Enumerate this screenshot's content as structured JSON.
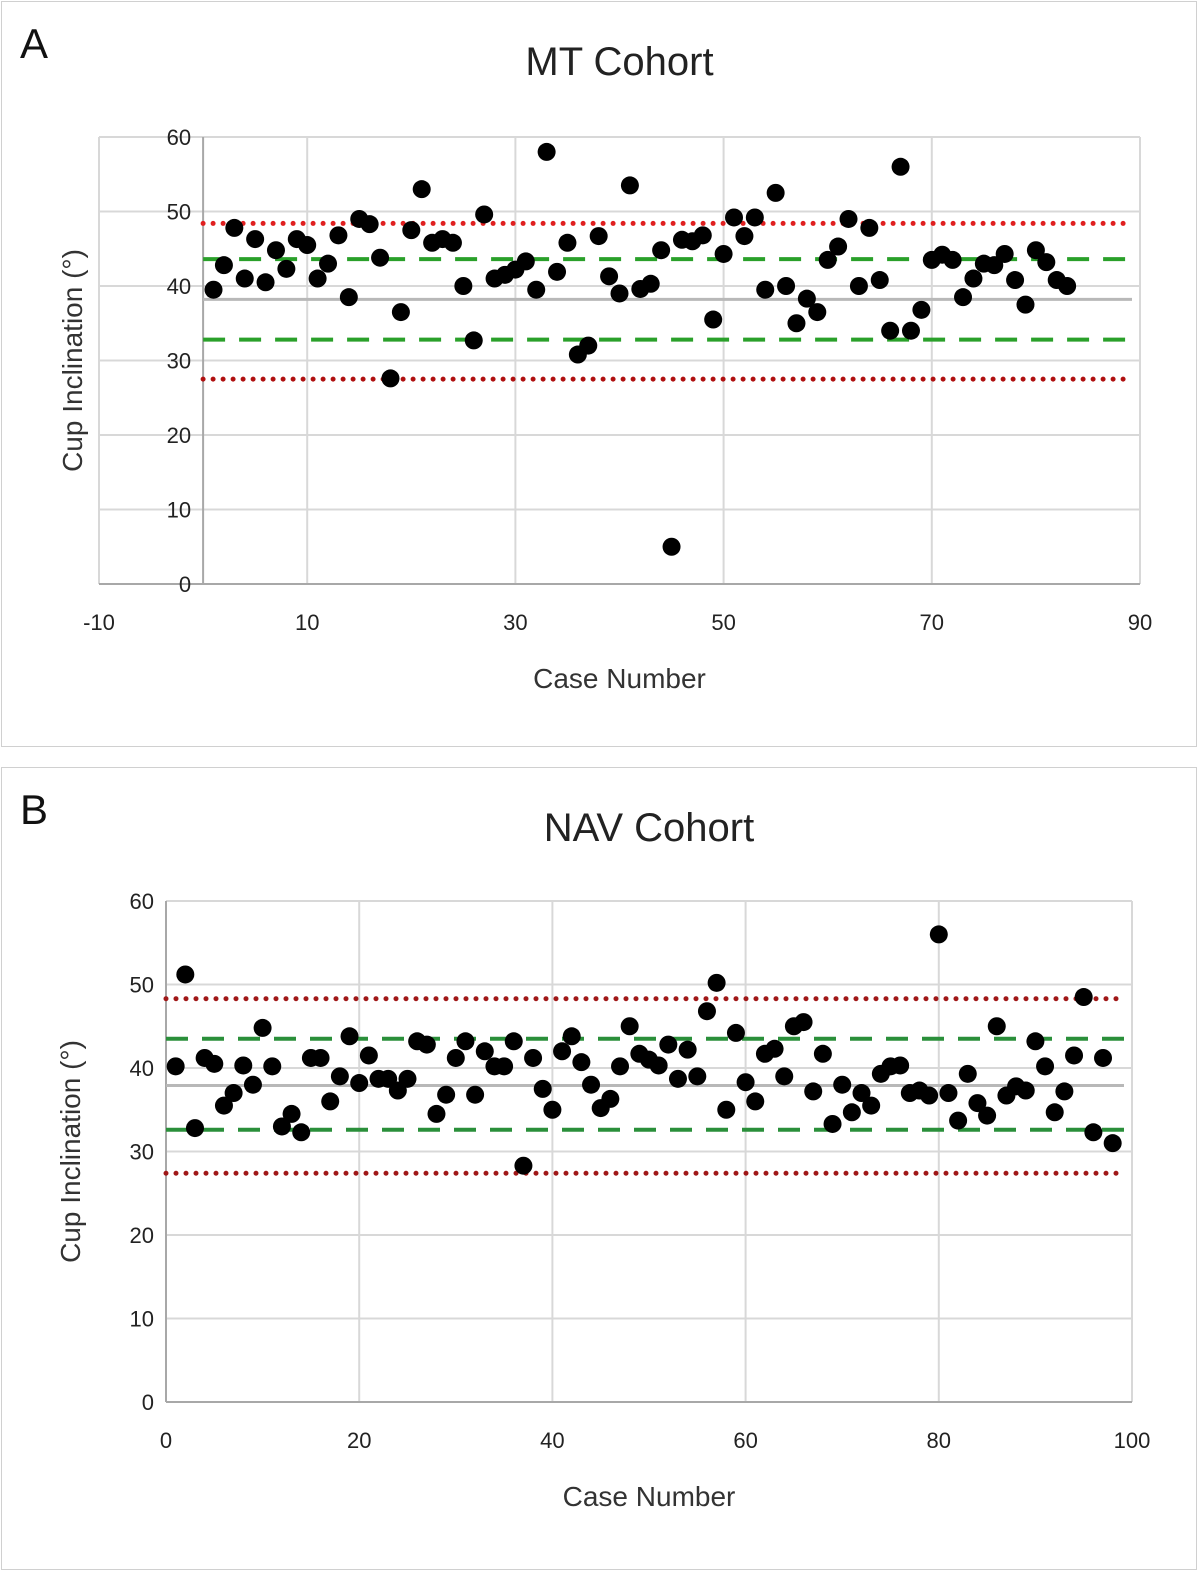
{
  "chart_data": [
    {
      "panel_label": "A",
      "type": "scatter",
      "title": "MT Cohort",
      "xlabel": "Case Number",
      "ylabel": "Cup Inclination  (°)",
      "xlim": [
        -10,
        90
      ],
      "ylim": [
        0,
        60
      ],
      "xticks": [
        -10,
        10,
        30,
        50,
        70,
        90
      ],
      "yticks": [
        0,
        10,
        20,
        30,
        40,
        50,
        60
      ],
      "grid": true,
      "colors": {
        "points": "#000000",
        "outer_limits": "#e02020",
        "inner_limits": "#2aa02a",
        "mean": "#b8b8b8",
        "grid": "#d8d8d8"
      },
      "reference_lines": [
        {
          "kind": "outer-upper",
          "y": 48.4,
          "style": "dotted",
          "color": "#e02020"
        },
        {
          "kind": "inner-upper",
          "y": 43.6,
          "style": "dashed",
          "color": "#2aa02a"
        },
        {
          "kind": "mean",
          "y": 38.2,
          "style": "solid",
          "color": "#b8b8b8"
        },
        {
          "kind": "inner-lower",
          "y": 32.8,
          "style": "dashed",
          "color": "#2aa02a"
        },
        {
          "kind": "outer-lower",
          "y": 27.5,
          "style": "dotted",
          "color": "#b01010"
        }
      ],
      "series": [
        {
          "x": [
            1,
            2,
            3,
            4,
            5,
            6,
            7,
            8,
            9,
            10,
            11,
            12,
            13,
            14,
            15,
            16,
            17,
            18,
            19,
            20,
            21,
            22,
            23,
            24,
            25,
            26,
            27,
            28,
            29,
            30,
            31,
            32,
            33,
            34,
            35,
            36,
            37,
            38,
            39,
            40,
            41,
            42,
            43,
            44,
            45,
            46,
            47,
            48,
            49,
            50,
            51,
            52,
            53,
            54,
            55,
            56,
            57,
            58,
            59,
            60,
            61,
            62,
            63,
            64,
            65,
            66,
            67,
            68,
            69,
            70,
            71,
            72,
            73,
            74,
            75,
            76,
            77,
            78,
            79,
            80,
            81,
            82,
            83
          ],
          "y": [
            39.5,
            42.8,
            47.8,
            41,
            46.3,
            40.5,
            44.8,
            42.3,
            46.3,
            45.5,
            41,
            43,
            46.8,
            38.5,
            49,
            48.3,
            43.8,
            27.6,
            36.5,
            47.5,
            53,
            45.8,
            46.3,
            45.8,
            40,
            32.7,
            49.6,
            41,
            41.5,
            42.2,
            43.3,
            39.5,
            58,
            41.9,
            45.8,
            30.8,
            32,
            46.7,
            41.3,
            39,
            53.5,
            39.6,
            40.3,
            44.8,
            5,
            46.2,
            46,
            46.8,
            35.5,
            44.3,
            49.2,
            46.7,
            49.2,
            39.5,
            52.5,
            40,
            35,
            38.3,
            36.5,
            43.5,
            45.3,
            49,
            40,
            47.8,
            40.8,
            34,
            56,
            34,
            36.8,
            43.5,
            44.2,
            43.5,
            38.5,
            41,
            43,
            42.8,
            44.3,
            40.8,
            37.5,
            44.8,
            43.2,
            40.8,
            40
          ]
        }
      ]
    },
    {
      "panel_label": "B",
      "type": "scatter",
      "title": "NAV Cohort",
      "xlabel": "Case Number",
      "ylabel": "Cup Inclination (°)",
      "xlim": [
        0,
        100
      ],
      "ylim": [
        0,
        60
      ],
      "xticks": [
        0,
        20,
        40,
        60,
        80,
        100
      ],
      "yticks": [
        0,
        10,
        20,
        30,
        40,
        50,
        60
      ],
      "grid": true,
      "colors": {
        "points": "#000000",
        "outer_limits": "#a01818",
        "inner_limits": "#2a8f3a",
        "mean": "#b8b8b8",
        "grid": "#d8d8d8"
      },
      "reference_lines": [
        {
          "kind": "outer-upper",
          "y": 48.3,
          "style": "dotted",
          "color": "#a01818"
        },
        {
          "kind": "inner-upper",
          "y": 43.5,
          "style": "dashed",
          "color": "#2a8f3a"
        },
        {
          "kind": "mean",
          "y": 37.9,
          "style": "solid",
          "color": "#b8b8b8"
        },
        {
          "kind": "inner-lower",
          "y": 32.6,
          "style": "dashed",
          "color": "#2a8f3a"
        },
        {
          "kind": "outer-lower",
          "y": 27.4,
          "style": "dotted",
          "color": "#a01818"
        }
      ],
      "series": [
        {
          "x": [
            1,
            2,
            3,
            4,
            5,
            6,
            7,
            8,
            9,
            10,
            11,
            12,
            13,
            14,
            15,
            16,
            17,
            18,
            19,
            20,
            21,
            22,
            23,
            24,
            25,
            26,
            27,
            28,
            29,
            30,
            31,
            32,
            33,
            34,
            35,
            36,
            37,
            38,
            39,
            40,
            41,
            42,
            43,
            44,
            45,
            46,
            47,
            48,
            49,
            50,
            51,
            52,
            53,
            54,
            55,
            56,
            57,
            58,
            59,
            60,
            61,
            62,
            63,
            64,
            65,
            66,
            67,
            68,
            69,
            70,
            71,
            72,
            73,
            74,
            75,
            76,
            77,
            78,
            79,
            80,
            81,
            82,
            83,
            84,
            85,
            86,
            87,
            88,
            89,
            90,
            91,
            92,
            93,
            94,
            95,
            96,
            97,
            98
          ],
          "y": [
            40.2,
            51.2,
            32.8,
            41.2,
            40.5,
            35.5,
            37,
            40.3,
            38,
            44.8,
            40.2,
            33,
            34.5,
            32.3,
            41.2,
            41.2,
            36,
            39,
            43.8,
            38.2,
            41.5,
            38.7,
            38.7,
            37.3,
            38.7,
            43.2,
            42.8,
            34.5,
            36.8,
            41.2,
            43.2,
            36.8,
            42,
            40.2,
            40.2,
            43.2,
            28.3,
            41.2,
            37.5,
            35,
            42,
            43.8,
            40.7,
            38,
            35.2,
            36.3,
            40.2,
            45,
            41.7,
            41,
            40.3,
            42.8,
            38.7,
            42.2,
            39,
            46.8,
            50.2,
            35,
            44.2,
            38.3,
            36,
            41.7,
            42.3,
            39,
            45,
            45.5,
            37.2,
            41.7,
            33.3,
            38,
            34.7,
            37,
            35.5,
            39.3,
            40.2,
            40.3,
            37,
            37.3,
            36.7,
            56,
            37,
            33.7,
            39.3,
            35.8,
            34.3,
            45,
            36.7,
            37.8,
            37.3,
            43.2,
            40.2,
            34.7,
            37.2,
            41.5,
            48.5,
            32.3,
            41.2,
            31
          ]
        }
      ]
    }
  ]
}
